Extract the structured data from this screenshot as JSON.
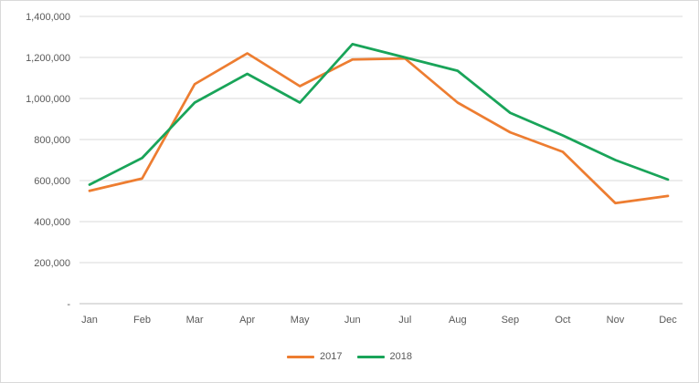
{
  "chart_data": {
    "type": "line",
    "categories": [
      "Jan",
      "Feb",
      "Mar",
      "Apr",
      "May",
      "Jun",
      "Jul",
      "Aug",
      "Sep",
      "Oct",
      "Nov",
      "Dec"
    ],
    "series": [
      {
        "name": "2017",
        "color": "#ED7D31",
        "values": [
          550000,
          610000,
          1070000,
          1220000,
          1060000,
          1190000,
          1195000,
          980000,
          835000,
          740000,
          490000,
          525000
        ]
      },
      {
        "name": "2018",
        "color": "#19A459",
        "values": [
          580000,
          710000,
          980000,
          1120000,
          980000,
          1265000,
          1200000,
          1135000,
          930000,
          820000,
          700000,
          605000
        ]
      }
    ],
    "title": "",
    "xlabel": "",
    "ylabel": "",
    "ylim": [
      0,
      1400000
    ],
    "ytick_step": 200000,
    "ytick_labels": [
      "-",
      "200,000",
      "400,000",
      "600,000",
      "800,000",
      "1,000,000",
      "1,200,000",
      "1,400,000"
    ],
    "grid": true,
    "legend_position": "bottom"
  },
  "colors": {
    "grid": "#d9d9d9",
    "axis": "#bfbfbf",
    "tick_text": "#595959",
    "background": "#ffffff",
    "border": "#d9d9d9"
  }
}
